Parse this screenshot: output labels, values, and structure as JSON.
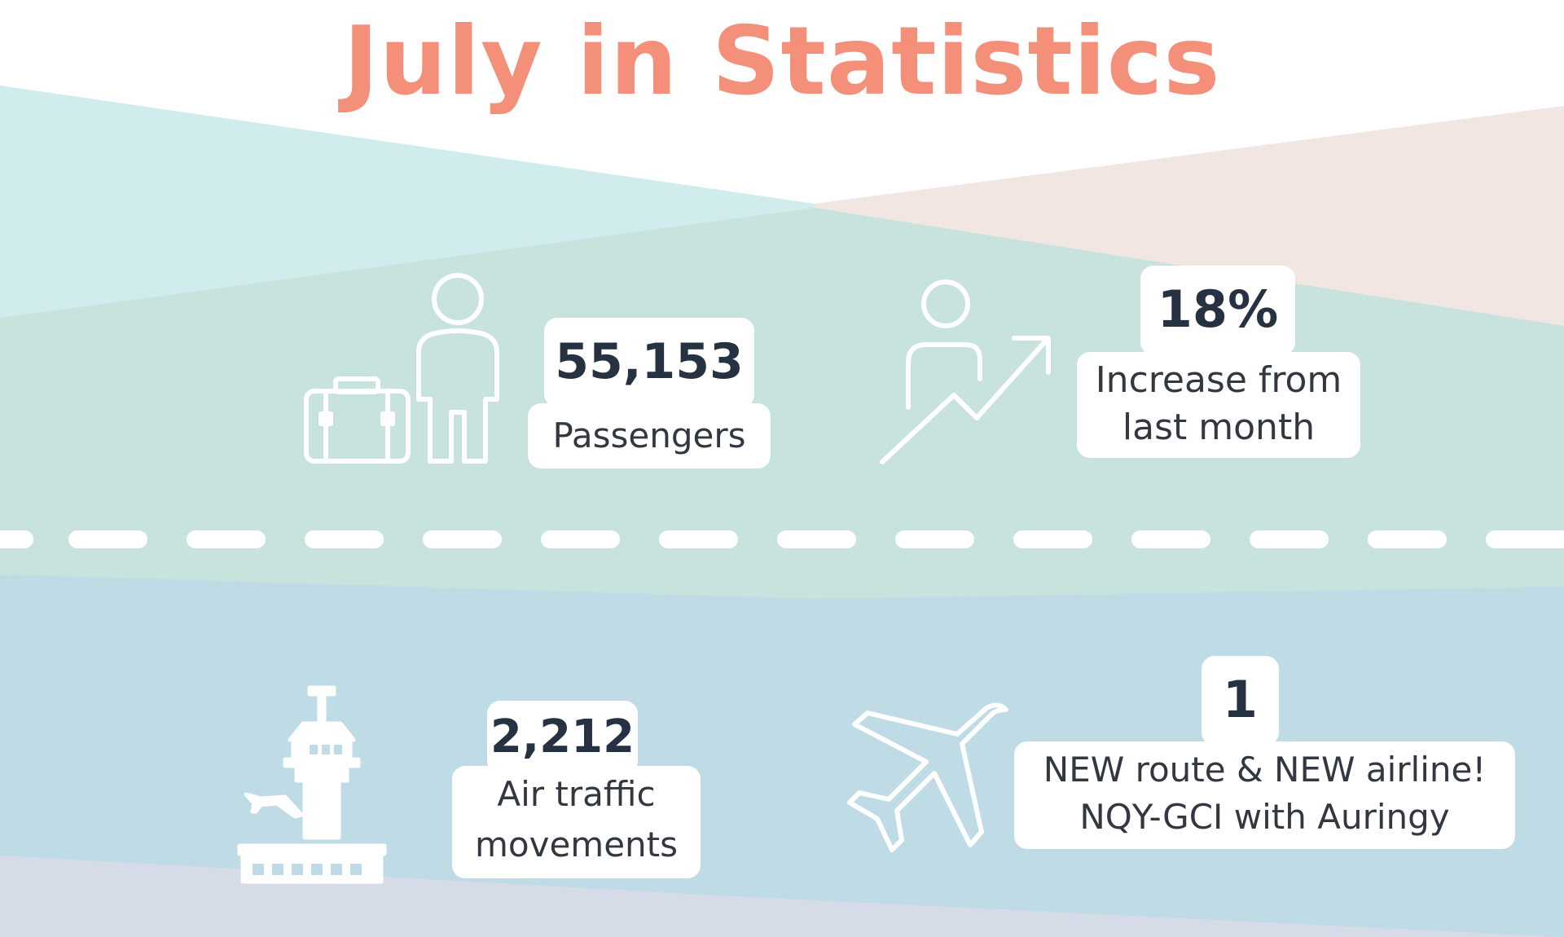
{
  "title": "July in Statistics",
  "colors": {
    "title": "#f4907a",
    "number_text": "#263142",
    "label_text": "#333740",
    "card_background": "#ffffff",
    "band_top_teal": "#d0ecec",
    "band_top_pink": "#f1e6e2",
    "band_mid_green": "#c8e2de",
    "band_bottom_blue": "#bedbe6",
    "band_bottom_lavender": "#d6dbe8",
    "runway_dash": "#ffffff"
  },
  "stats": [
    {
      "id": "passengers",
      "value": "55,153",
      "label": "Passengers",
      "icon": "passenger-with-luggage-icon"
    },
    {
      "id": "increase",
      "value": "18%",
      "label_line1": "Increase from",
      "label_line2": "last month",
      "icon": "person-growth-arrow-icon"
    },
    {
      "id": "atm",
      "value": "2,212",
      "label_line1": "Air traffic",
      "label_line2": "movements",
      "icon": "control-tower-icon"
    },
    {
      "id": "route",
      "value": "1",
      "label_line1": "NEW route & NEW airline!",
      "label_line2": "NQY-GCI with Auringy",
      "icon": "airplane-icon"
    }
  ]
}
